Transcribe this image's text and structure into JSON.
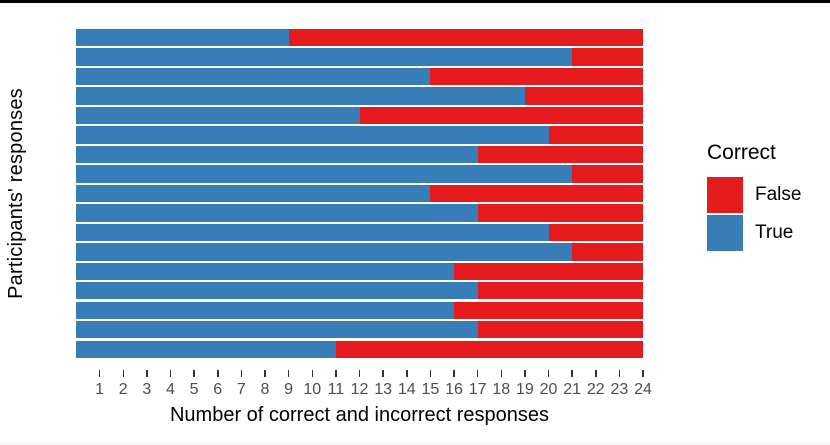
{
  "figure": {
    "background": "#ffffff",
    "top_rule_color": "#000000",
    "bottom_rule_color": "#ececec"
  },
  "chart_data": {
    "type": "bar",
    "orientation": "horizontal",
    "stacked": true,
    "title": "",
    "xlabel": "Number of correct and incorrect responses",
    "ylabel": "Participants' responses",
    "xlim": [
      0,
      24
    ],
    "x_ticks": [
      1,
      2,
      3,
      4,
      5,
      6,
      7,
      8,
      9,
      10,
      11,
      12,
      13,
      14,
      15,
      16,
      17,
      18,
      19,
      20,
      21,
      22,
      23,
      24
    ],
    "grid": "off",
    "bar_count": 17,
    "bars_order": "top-to-bottom",
    "bar_total": 24,
    "axis_text_color": "#4d4d4d",
    "tick_color": "#333333",
    "legend": {
      "title": "Correct",
      "position": "right",
      "items": [
        {
          "label": "False",
          "color": "#e41a1c"
        },
        {
          "label": "True",
          "color": "#377eb8"
        }
      ]
    },
    "series": [
      {
        "name": "True",
        "color": "#377eb8",
        "values": [
          9,
          21,
          15,
          19,
          12,
          20,
          17,
          21,
          15,
          17,
          20,
          21,
          16,
          17,
          16,
          17,
          11
        ]
      },
      {
        "name": "False",
        "color": "#e41a1c",
        "values": [
          15,
          3,
          9,
          5,
          12,
          4,
          7,
          3,
          9,
          7,
          4,
          3,
          8,
          7,
          8,
          7,
          13
        ]
      }
    ]
  }
}
